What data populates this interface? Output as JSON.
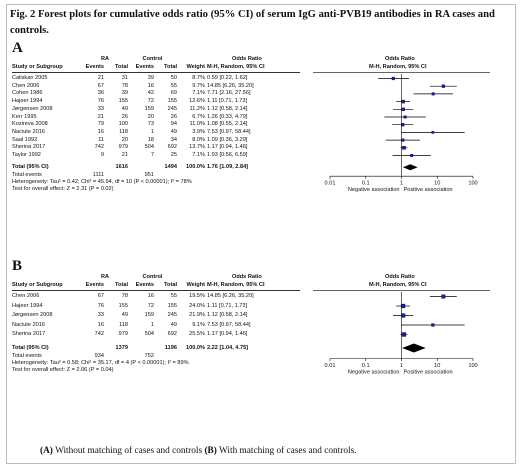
{
  "title": "Fig. 2 Forest plots for cumulative odds ratio (95% CI) of serum IgG anti-PVB19 antibodies in RA cases and controls.",
  "caption": {
    "a_tag": "(A)",
    "a_text": "Without matching of cases and controls",
    "b_tag": "(B)",
    "b_text": "With matching of cases and controls."
  },
  "headers": {
    "group_ra": "RA",
    "group_control": "Control",
    "study": "Study or Subgroup",
    "events": "Events",
    "total": "Total",
    "weight": "Weight",
    "or_top": "Odds Ratio",
    "or_sub": "M-H, Random, 95% CI",
    "plot_top": "Odds Ratio",
    "plot_sub": "M-H, Random, 95% CI"
  },
  "axis": {
    "ticks": [
      "0.01",
      "0.1",
      "1",
      "10",
      "100"
    ],
    "left_label": "Negative association",
    "right_label": "Positive association"
  },
  "colors": {
    "study_marker": "#1a1f8f",
    "diamond": "#000000",
    "ci_line": "#000000"
  },
  "chart_data": [
    {
      "type": "forest",
      "panel": "A",
      "title": "",
      "scale": "log",
      "xlim": [
        0.01,
        100
      ],
      "studies": [
        {
          "name": "Caliskan 2005",
          "ra_events": "21",
          "ra_total": "31",
          "ctrl_events": "39",
          "ctrl_total": "50",
          "weight": "8.7%",
          "or_text": "0.59 [0.22, 1.62]",
          "or": 0.59,
          "lo": 0.22,
          "hi": 1.62
        },
        {
          "name": "Chen 2006",
          "ra_events": "67",
          "ra_total": "78",
          "ctrl_events": "16",
          "ctrl_total": "55",
          "weight": "9.7%",
          "or_text": "14.85 [6.26, 35.20]",
          "or": 14.85,
          "lo": 6.26,
          "hi": 35.2
        },
        {
          "name": "Cohen 1986",
          "ra_events": "36",
          "ra_total": "39",
          "ctrl_events": "42",
          "ctrl_total": "69",
          "weight": "7.1%",
          "or_text": "7.71 [2.16, 27.56]",
          "or": 7.71,
          "lo": 2.16,
          "hi": 27.56
        },
        {
          "name": "Hajeer 1994",
          "ra_events": "76",
          "ra_total": "155",
          "ctrl_events": "72",
          "ctrl_total": "155",
          "weight": "12.6%",
          "or_text": "1.11 [0.71, 1.73]",
          "or": 1.11,
          "lo": 0.71,
          "hi": 1.73
        },
        {
          "name": "Jørgensen 2008",
          "ra_events": "33",
          "ra_total": "49",
          "ctrl_events": "159",
          "ctrl_total": "245",
          "weight": "11.2%",
          "or_text": "1.12 [0.58, 2.14]",
          "or": 1.12,
          "lo": 0.58,
          "hi": 2.14
        },
        {
          "name": "Kerr 1995",
          "ra_events": "21",
          "ra_total": "26",
          "ctrl_events": "20",
          "ctrl_total": "26",
          "weight": "6.7%",
          "or_text": "1.26 [0.33, 4.79]",
          "or": 1.26,
          "lo": 0.33,
          "hi": 4.79
        },
        {
          "name": "Kozireva 2008",
          "ra_events": "79",
          "ra_total": "100",
          "ctrl_events": "73",
          "ctrl_total": "94",
          "weight": "11.0%",
          "or_text": "1.08 [0.55, 2.14]",
          "or": 1.08,
          "lo": 0.55,
          "hi": 2.14
        },
        {
          "name": "Naciute 2016",
          "ra_events": "16",
          "ra_total": "118",
          "ctrl_events": "1",
          "ctrl_total": "49",
          "weight": "3.9%",
          "or_text": "7.53 [0.97, 58.44]",
          "or": 7.53,
          "lo": 0.97,
          "hi": 58.44
        },
        {
          "name": "Saal 1992",
          "ra_events": "11",
          "ra_total": "20",
          "ctrl_events": "18",
          "ctrl_total": "34",
          "weight": "8.0%",
          "or_text": "1.09 [0.36, 3.29]",
          "or": 1.09,
          "lo": 0.36,
          "hi": 3.29
        },
        {
          "name": "Sherina 2017",
          "ra_events": "742",
          "ra_total": "979",
          "ctrl_events": "504",
          "ctrl_total": "692",
          "weight": "13.7%",
          "or_text": "1.17 [0.94, 1.46]",
          "or": 1.17,
          "lo": 0.94,
          "hi": 1.46
        },
        {
          "name": "Taylor 1992",
          "ra_events": "9",
          "ra_total": "21",
          "ctrl_events": "7",
          "ctrl_total": "25",
          "weight": "7.1%",
          "or_text": "1.93 [0.56, 6.59]",
          "or": 1.93,
          "lo": 0.56,
          "hi": 6.59
        }
      ],
      "total": {
        "label": "Total (95% CI)",
        "ra_total": "1616",
        "ctrl_total": "1494",
        "weight": "100.0%",
        "or_text": "1.76 [1.09, 2.84]",
        "or": 1.76,
        "lo": 1.09,
        "hi": 2.84
      },
      "total_events": {
        "label": "Total events",
        "ra": "1111",
        "ctrl": "951"
      },
      "heterogeneity": "Heterogeneity: Tau² = 0.42; Chi² = 45.94, df = 10 (P < 0.00001); I² = 78%",
      "overall_effect": "Test for overall effect: Z = 2.31 (P = 0.02)"
    },
    {
      "type": "forest",
      "panel": "B",
      "title": "",
      "scale": "log",
      "xlim": [
        0.01,
        100
      ],
      "studies": [
        {
          "name": "Chen 2006",
          "ra_events": "67",
          "ra_total": "78",
          "ctrl_events": "16",
          "ctrl_total": "55",
          "weight": "19.5%",
          "or_text": "14.85 [6.26, 35.20]",
          "or": 14.85,
          "lo": 6.26,
          "hi": 35.2
        },
        {
          "name": "Hajeer 1994",
          "ra_events": "76",
          "ra_total": "155",
          "ctrl_events": "72",
          "ctrl_total": "155",
          "weight": "24.0%",
          "or_text": "1.11 [0.71, 1.73]",
          "or": 1.11,
          "lo": 0.71,
          "hi": 1.73
        },
        {
          "name": "Jørgensen 2008",
          "ra_events": "33",
          "ra_total": "49",
          "ctrl_events": "159",
          "ctrl_total": "245",
          "weight": "21.9%",
          "or_text": "1.12 [0.58, 2.14]",
          "or": 1.12,
          "lo": 0.58,
          "hi": 2.14
        },
        {
          "name": "Naciute 2016",
          "ra_events": "16",
          "ra_total": "118",
          "ctrl_events": "1",
          "ctrl_total": "49",
          "weight": "9.1%",
          "or_text": "7.53 [0.97, 58.44]",
          "or": 7.53,
          "lo": 0.97,
          "hi": 58.44
        },
        {
          "name": "Sherina 2017",
          "ra_events": "742",
          "ra_total": "979",
          "ctrl_events": "504",
          "ctrl_total": "692",
          "weight": "25.5%",
          "or_text": "1.17 [0.94, 1.46]",
          "or": 1.17,
          "lo": 0.94,
          "hi": 1.46
        }
      ],
      "total": {
        "label": "Total (95% CI)",
        "ra_total": "1379",
        "ctrl_total": "1196",
        "weight": "100.0%",
        "or_text": "2.22 [1.04, 4.75]",
        "or": 2.22,
        "lo": 1.04,
        "hi": 4.75
      },
      "total_events": {
        "label": "Total events",
        "ra": "934",
        "ctrl": "752"
      },
      "heterogeneity": "Heterogeneity: Tau² = 0.58; Chi² = 35.17, df = 4 (P < 0.00001); I² = 89%",
      "overall_effect": "Test for overall effect: Z = 2.06 (P = 0.04)"
    }
  ]
}
